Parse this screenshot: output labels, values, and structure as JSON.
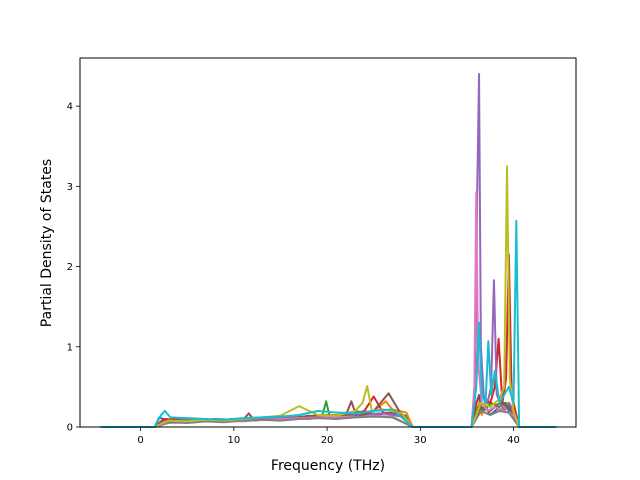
{
  "chart_data": {
    "type": "line",
    "title": "",
    "xlabel": "Frequency (THz)",
    "ylabel": "Partial Density of States",
    "xlim": [
      -6.5,
      46.7
    ],
    "ylim": [
      0,
      4.6
    ],
    "x_ticks": [
      0,
      10,
      20,
      30,
      40
    ],
    "y_ticks": [
      0,
      1,
      2,
      3,
      4
    ],
    "grid": false,
    "legend": "none",
    "colors": [
      "#1f77b4",
      "#ff7f0e",
      "#2ca02c",
      "#d62728",
      "#9467bd",
      "#8c564b",
      "#e377c2",
      "#7f7f7f",
      "#bcbd22",
      "#17becf"
    ],
    "series": [
      {
        "x": [
          -4.3,
          1.5,
          2.0,
          2.4,
          3.0,
          4.0,
          5.0,
          6.0,
          8.0,
          10.0,
          12.0,
          14.0,
          16.0,
          18.0,
          19.8,
          21.0,
          23.0,
          25.0,
          27.0,
          28.5,
          29.2,
          35.5,
          36.0,
          36.3,
          36.6,
          37.0,
          37.5,
          38.0,
          38.5,
          39.0,
          39.5,
          40.0,
          40.3,
          40.6,
          44.6
        ],
        "y": [
          0,
          0,
          0.12,
          0.1,
          0.09,
          0.1,
          0.08,
          0.09,
          0.08,
          0.1,
          0.11,
          0.12,
          0.1,
          0.14,
          0.13,
          0.1,
          0.2,
          0.15,
          0.18,
          0.14,
          0,
          0,
          0.3,
          0.4,
          0.2,
          0.25,
          0.15,
          0.2,
          0.25,
          0.3,
          0.2,
          0.25,
          0.15,
          0,
          0
        ]
      },
      {
        "x": [
          -4.3,
          1.5,
          2.0,
          3.0,
          5.0,
          7.0,
          9.0,
          11.0,
          13.0,
          15.0,
          17.0,
          19.0,
          21.0,
          23.0,
          25.0,
          26.3,
          27.0,
          28.5,
          29.2,
          35.5,
          36.0,
          36.3,
          36.6,
          37.0,
          37.5,
          38.0,
          38.5,
          39.0,
          39.5,
          40.0,
          40.6,
          44.6
        ],
        "y": [
          0,
          0,
          0.05,
          0.07,
          0.06,
          0.08,
          0.07,
          0.09,
          0.1,
          0.12,
          0.11,
          0.13,
          0.15,
          0.18,
          0.2,
          0.32,
          0.22,
          0.18,
          0,
          0,
          0.2,
          0.3,
          0.15,
          0.35,
          0.25,
          0.3,
          0.2,
          0.25,
          0.3,
          0.2,
          0,
          0
        ]
      },
      {
        "x": [
          -4.3,
          1.5,
          2.3,
          3.5,
          5.5,
          7.5,
          9.5,
          11.5,
          13.5,
          15.5,
          17.5,
          19.5,
          19.9,
          20.3,
          22.0,
          24.0,
          26.0,
          28.0,
          29.2,
          35.5,
          36.2,
          36.8,
          37.6,
          38.4,
          39.2,
          40.0,
          40.6,
          44.6
        ],
        "y": [
          0,
          0,
          0.08,
          0.07,
          0.08,
          0.09,
          0.08,
          0.1,
          0.09,
          0.11,
          0.13,
          0.15,
          0.32,
          0.12,
          0.14,
          0.16,
          0.17,
          0.13,
          0,
          0,
          0.25,
          0.2,
          0.3,
          0.25,
          0.3,
          0.2,
          0,
          0
        ]
      },
      {
        "x": [
          -4.3,
          1.5,
          2.5,
          4.0,
          6.0,
          8.0,
          10.0,
          12.0,
          14.0,
          16.0,
          18.0,
          20.0,
          22.0,
          24.0,
          25.0,
          26.0,
          28.0,
          29.2,
          35.5,
          36.0,
          36.5,
          37.0,
          37.5,
          38.0,
          38.4,
          38.8,
          39.2,
          39.5,
          39.8,
          40.2,
          40.6,
          44.6
        ],
        "y": [
          0,
          0,
          0.1,
          0.09,
          0.08,
          0.1,
          0.09,
          0.11,
          0.12,
          0.11,
          0.13,
          0.15,
          0.14,
          0.2,
          0.38,
          0.18,
          0.16,
          0,
          0,
          0.3,
          0.4,
          0.35,
          0.3,
          0.5,
          1.1,
          0.3,
          0.6,
          2.15,
          0.4,
          0.2,
          0,
          0
        ]
      },
      {
        "x": [
          -4.3,
          1.5,
          2.5,
          4.0,
          6.0,
          8.0,
          10.0,
          12.0,
          14.0,
          16.0,
          18.0,
          20.0,
          22.0,
          24.0,
          26.0,
          28.0,
          29.2,
          35.5,
          35.9,
          36.1,
          36.3,
          36.5,
          36.8,
          37.2,
          37.6,
          37.9,
          38.2,
          38.6,
          39.0,
          39.5,
          40.0,
          40.6,
          44.6
        ],
        "y": [
          0,
          0,
          0.07,
          0.08,
          0.09,
          0.08,
          0.1,
          0.09,
          0.11,
          0.12,
          0.1,
          0.13,
          0.14,
          0.15,
          0.17,
          0.14,
          0,
          0,
          0.6,
          2.9,
          4.4,
          1.0,
          0.4,
          0.3,
          0.5,
          1.83,
          0.4,
          0.3,
          0.2,
          0.3,
          0.2,
          0,
          0
        ]
      },
      {
        "x": [
          -4.3,
          1.5,
          3.0,
          5.0,
          7.0,
          9.0,
          11.0,
          11.6,
          12.2,
          14.0,
          16.0,
          18.0,
          20.0,
          22.0,
          22.6,
          23.2,
          25.0,
          26.6,
          28.0,
          29.2,
          35.5,
          36.5,
          37.5,
          38.5,
          39.5,
          40.6,
          44.6
        ],
        "y": [
          0,
          0,
          0.06,
          0.07,
          0.08,
          0.07,
          0.09,
          0.17,
          0.08,
          0.1,
          0.11,
          0.12,
          0.13,
          0.14,
          0.32,
          0.12,
          0.2,
          0.42,
          0.15,
          0,
          0,
          0.25,
          0.2,
          0.3,
          0.25,
          0,
          0
        ]
      },
      {
        "x": [
          -4.3,
          1.5,
          3.0,
          5.0,
          7.0,
          9.0,
          11.0,
          13.0,
          15.0,
          17.0,
          19.0,
          21.0,
          23.0,
          25.0,
          27.0,
          29.2,
          35.5,
          35.8,
          36.0,
          36.2,
          36.6,
          37.2,
          38.0,
          39.0,
          40.0,
          40.6,
          44.6
        ],
        "y": [
          0,
          0,
          0.05,
          0.06,
          0.07,
          0.08,
          0.07,
          0.09,
          0.1,
          0.11,
          0.12,
          0.13,
          0.12,
          0.14,
          0.13,
          0,
          0,
          0.5,
          2.93,
          0.8,
          0.3,
          0.2,
          0.25,
          0.2,
          0.15,
          0,
          0
        ]
      },
      {
        "x": [
          -4.3,
          1.5,
          3.0,
          5.0,
          7.0,
          9.0,
          11.0,
          13.0,
          15.0,
          17.0,
          19.0,
          21.0,
          23.0,
          25.0,
          27.0,
          29.2,
          35.5,
          36.5,
          37.5,
          38.5,
          39.5,
          40.6,
          44.6
        ],
        "y": [
          0,
          0,
          0.06,
          0.05,
          0.07,
          0.06,
          0.08,
          0.09,
          0.08,
          0.1,
          0.11,
          0.1,
          0.12,
          0.13,
          0.12,
          0,
          0,
          0.2,
          0.15,
          0.2,
          0.18,
          0,
          0
        ]
      },
      {
        "x": [
          -4.3,
          1.5,
          3.0,
          5.0,
          7.0,
          9.0,
          11.0,
          13.0,
          15.0,
          17.0,
          19.0,
          21.0,
          23.0,
          23.8,
          24.3,
          24.8,
          26.0,
          28.0,
          29.2,
          35.5,
          36.5,
          37.5,
          38.5,
          39.0,
          39.3,
          39.6,
          40.0,
          40.6,
          44.6
        ],
        "y": [
          0,
          0,
          0.08,
          0.07,
          0.09,
          0.08,
          0.1,
          0.12,
          0.14,
          0.26,
          0.15,
          0.14,
          0.2,
          0.3,
          0.51,
          0.2,
          0.22,
          0.17,
          0,
          0,
          0.3,
          0.25,
          0.35,
          0.5,
          3.25,
          0.6,
          0.2,
          0,
          0
        ]
      },
      {
        "x": [
          -4.3,
          1.5,
          2.2,
          2.6,
          3.2,
          5.0,
          7.0,
          9.0,
          11.0,
          13.0,
          15.0,
          17.0,
          19.0,
          21.0,
          23.0,
          25.0,
          27.0,
          29.2,
          35.5,
          36.0,
          36.3,
          36.6,
          37.0,
          37.3,
          37.6,
          38.0,
          38.5,
          39.0,
          39.5,
          40.0,
          40.3,
          40.6,
          44.6
        ],
        "y": [
          0,
          0,
          0.15,
          0.2,
          0.12,
          0.11,
          0.1,
          0.09,
          0.11,
          0.12,
          0.13,
          0.15,
          0.2,
          0.18,
          0.17,
          0.2,
          0.22,
          0,
          0,
          0.5,
          1.3,
          0.4,
          0.3,
          1.07,
          0.4,
          0.7,
          0.3,
          0.4,
          0.5,
          0.3,
          2.57,
          0,
          0
        ]
      }
    ]
  }
}
